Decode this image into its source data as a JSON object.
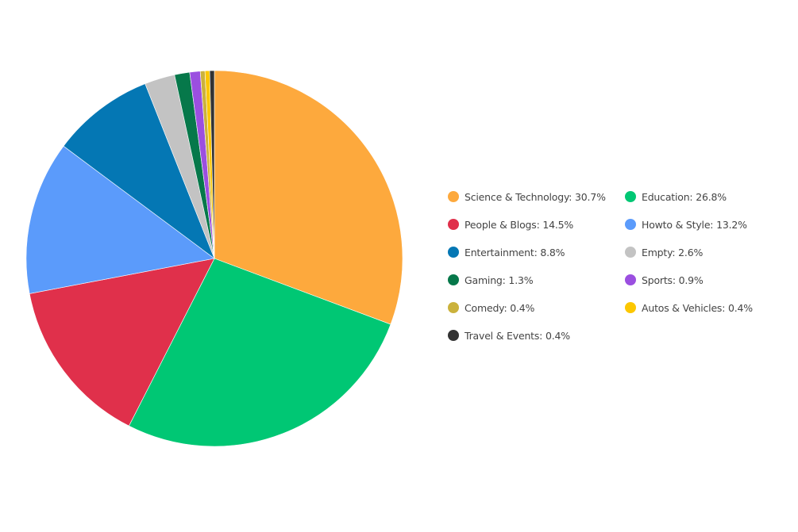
{
  "chart_data": {
    "type": "pie",
    "direction": "clockwise from top",
    "legend_placement": "right",
    "slices": [
      {
        "label": "Science & Technology",
        "value": 30.7,
        "color": "#FDA93D"
      },
      {
        "label": "Education",
        "value": 26.8,
        "color": "#00C774"
      },
      {
        "label": "People & Blogs",
        "value": 14.5,
        "color": "#E0304B"
      },
      {
        "label": "Howto & Style",
        "value": 13.2,
        "color": "#5B9BFB"
      },
      {
        "label": "Entertainment",
        "value": 8.8,
        "color": "#0477B4"
      },
      {
        "label": "Empty",
        "value": 2.6,
        "color": "#C3C3C3"
      },
      {
        "label": "Gaming",
        "value": 1.3,
        "color": "#06784A"
      },
      {
        "label": "Sports",
        "value": 0.9,
        "color": "#9B4FE0"
      },
      {
        "label": "Comedy",
        "value": 0.4,
        "color": "#CBB23C"
      },
      {
        "label": "Autos & Vehicles",
        "value": 0.4,
        "color": "#FCC700"
      },
      {
        "label": "Travel & Events",
        "value": 0.4,
        "color": "#333333"
      }
    ],
    "legend_labels": [
      "Science & Technology: 30.7%",
      "Education: 26.8%",
      "People & Blogs: 14.5%",
      "Howto & Style: 13.2%",
      "Entertainment: 8.8%",
      "Empty: 2.6%",
      "Gaming: 1.3%",
      "Sports: 0.9%",
      "Comedy: 0.4%",
      "Autos & Vehicles: 0.4%",
      "Travel & Events: 0.4%"
    ]
  }
}
